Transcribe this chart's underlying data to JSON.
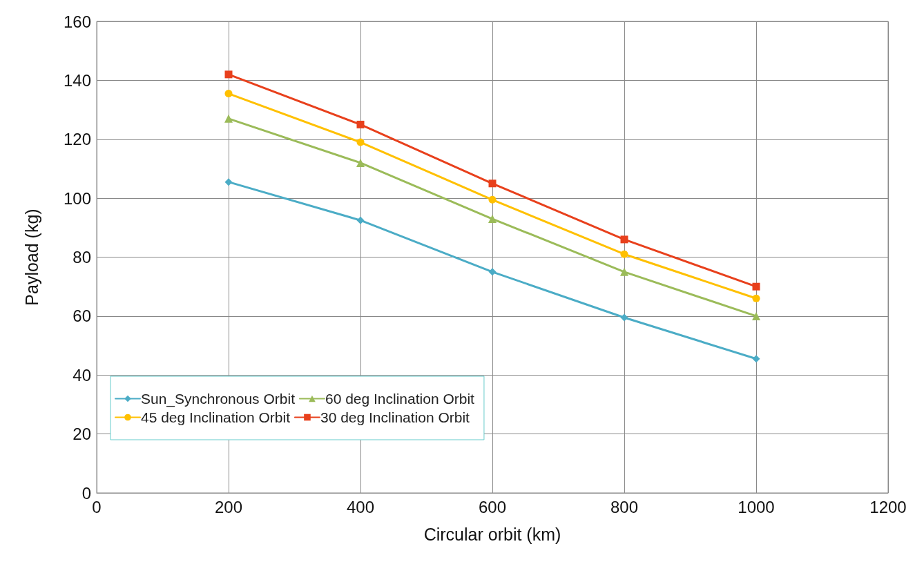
{
  "chart_data": {
    "type": "line",
    "xlabel": "Circular orbit (km)",
    "ylabel": "Payload (kg)",
    "x": [
      200,
      400,
      600,
      800,
      1000
    ],
    "series": [
      {
        "name": "Sun_Synchronous Orbit",
        "color": "#4bacc6",
        "marker": "diamond",
        "values": [
          105.5,
          92.5,
          75,
          59.5,
          45.5
        ]
      },
      {
        "name": "60 deg Inclination Orbit",
        "color": "#9bbb59",
        "marker": "triangle",
        "values": [
          127,
          112,
          93,
          75,
          60
        ]
      },
      {
        "name": "45 deg Inclination Orbit",
        "color": "#ffc000",
        "marker": "circle",
        "values": [
          135.5,
          119,
          99.5,
          81,
          66
        ]
      },
      {
        "name": "30 deg Inclination Orbit",
        "color": "#e8401c",
        "marker": "square",
        "values": [
          142,
          125,
          105,
          86,
          70
        ]
      }
    ],
    "xlim": [
      0,
      1200
    ],
    "xticks": [
      0,
      200,
      400,
      600,
      800,
      1000,
      1200
    ],
    "ylim": [
      0,
      160
    ],
    "yticks": [
      0,
      20,
      40,
      60,
      80,
      100,
      120,
      140,
      160
    ],
    "grid": true,
    "legend": "bottom left",
    "line_style": "solid"
  }
}
